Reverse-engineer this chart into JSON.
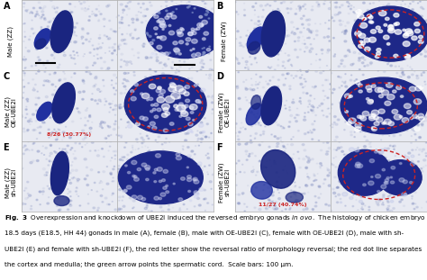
{
  "fig_width": 4.74,
  "fig_height": 3.11,
  "dpi": 100,
  "background_color": "#ffffff",
  "caption_fontsize": 5.2,
  "label_fontsize": 5.0,
  "panel_letter_fontsize": 7.0,
  "panel_bg": "#e8eaf0",
  "caption_lines": [
    "Fig. 3  Overexpression and knockdown of UBE2I induced the reversed embryo gonads in ovo.  The histology of chicken embryo",
    "18.5 days (E18.5, HH 44) gonads in male (A), female (B), male with OE-UBE2I (C), female with OE-UBE2I (D), male with sh-",
    "UBE2I (E) and female with sh-UBE2I (F), the red letter show the reversal ratio of morphology reversal; the red dot line separates",
    "the cortex and medulla; the green arrow points the spermatic cord.  Scale bars: 100 μm."
  ],
  "panels": [
    {
      "label": "A",
      "col": 0,
      "row": 0,
      "row_label": "Male (ZZ)",
      "red_text": null
    },
    {
      "label": "B",
      "col": 1,
      "row": 0,
      "row_label": "Female (ZW)",
      "red_text": null
    },
    {
      "label": "C",
      "col": 0,
      "row": 1,
      "row_label": "Male (ZZ)\nOE-UBE2I",
      "red_text": "8/26 (30.77%)"
    },
    {
      "label": "D",
      "col": 1,
      "row": 1,
      "row_label": "Female (ZW)\nOE-UBE2I",
      "red_text": null
    },
    {
      "label": "E",
      "col": 0,
      "row": 2,
      "row_label": "Male (ZZ)\nsh-UBE2I",
      "red_text": null
    },
    {
      "label": "F",
      "col": 1,
      "row": 2,
      "row_label": "Female (ZW)\nsh-UBE2I",
      "red_text": "11/27 (40.74%)"
    }
  ]
}
